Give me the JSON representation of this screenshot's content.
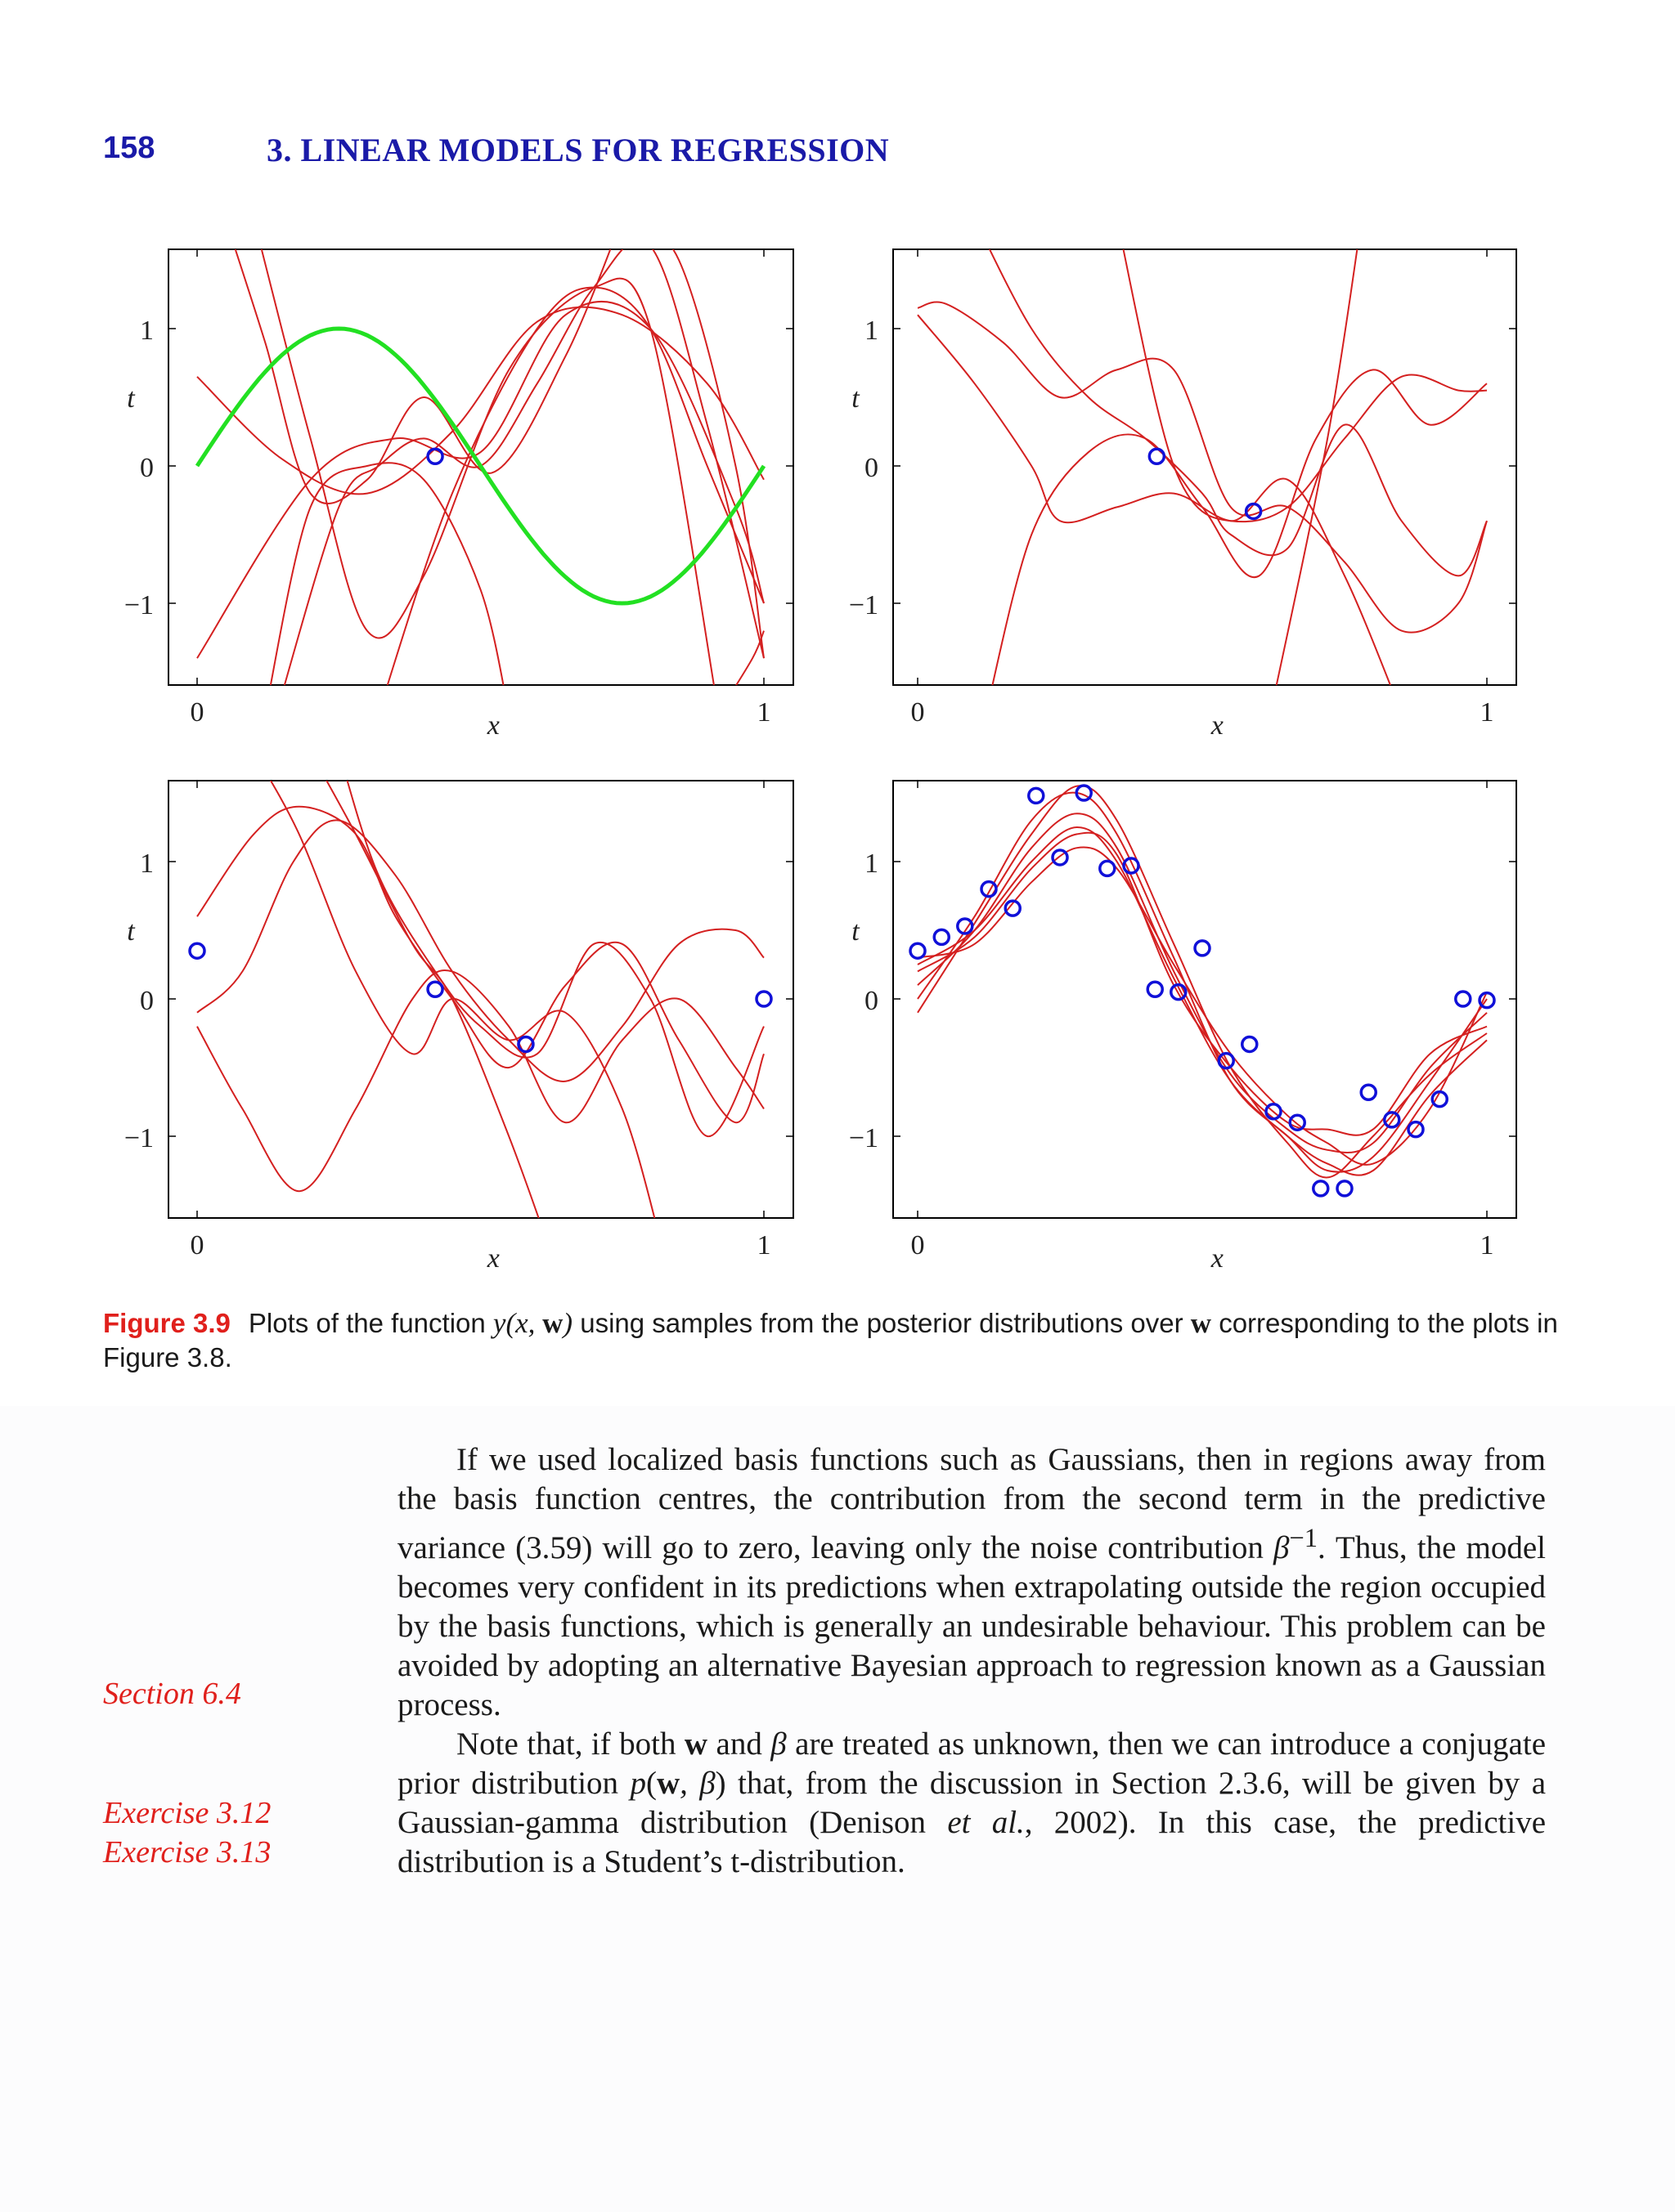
{
  "header": {
    "page_number": "158",
    "chapter_title": "3. LINEAR MODELS FOR REGRESSION"
  },
  "colors": {
    "header": "#1a1aa8",
    "sample_curves": "#d42020",
    "true_function": "#22e022",
    "data_points": "#1010d8",
    "figure_label": "#e0201c",
    "margin_notes": "#e0201c"
  },
  "chart_data": [
    {
      "type": "line",
      "panel": "top-left",
      "xlabel": "x",
      "ylabel": "t",
      "xlim": [
        0,
        1
      ],
      "ylim": [
        -1.6,
        1.6
      ],
      "xticks": [
        "0",
        "1"
      ],
      "yticks": [
        "1",
        "0",
        "−1"
      ],
      "true_function": "sin(2πx)",
      "points": [
        {
          "x": 0.42,
          "y": 0.07
        }
      ],
      "series": [
        {
          "x": [
            0,
            0.15,
            0.3,
            0.45,
            0.6,
            0.75,
            0.9,
            1.0
          ],
          "y": [
            0.65,
            0.05,
            -0.2,
            0.25,
            1.05,
            1.1,
            0.6,
            -0.1
          ]
        },
        {
          "x": [
            0,
            0.2,
            0.35,
            0.5,
            0.65,
            0.8,
            0.95,
            1.0
          ],
          "y": [
            -1.4,
            -0.1,
            0.2,
            0.1,
            1.1,
            1.0,
            -0.3,
            -1.0
          ]
        },
        {
          "x": [
            0.1,
            0.2,
            0.3,
            0.4,
            0.55,
            0.7,
            0.8,
            0.92
          ],
          "y": [
            1.8,
            0.2,
            -1.2,
            -0.8,
            0.7,
            1.3,
            1.0,
            -1.8
          ]
        },
        {
          "x": [
            0.05,
            0.12,
            0.2,
            0.3,
            0.4,
            0.52,
            0.65,
            0.75
          ],
          "y": [
            1.8,
            0.9,
            -0.2,
            -0.1,
            0.5,
            -0.05,
            0.8,
            1.8
          ]
        },
        {
          "x": [
            0.12,
            0.2,
            0.3,
            0.4,
            0.5,
            0.55
          ],
          "y": [
            -1.8,
            -0.3,
            0.0,
            -0.1,
            -0.9,
            -1.8
          ]
        },
        {
          "x": [
            0.14,
            0.25,
            0.32,
            0.4,
            0.5,
            0.6,
            0.7,
            0.8,
            0.9,
            1.0
          ],
          "y": [
            -1.8,
            -0.3,
            0.0,
            0.2,
            0.0,
            0.6,
            1.3,
            1.6,
            0.3,
            -1.4
          ]
        },
        {
          "x": [
            0.32,
            0.45,
            0.6,
            0.7,
            0.8,
            0.9,
            1.0
          ],
          "y": [
            -1.8,
            -0.2,
            1.0,
            1.3,
            1.0,
            0.0,
            -1.0
          ]
        },
        {
          "x": [
            0.75,
            0.85,
            0.95,
            1.0
          ],
          "y": [
            1.8,
            1.5,
            0.0,
            -1.4
          ]
        },
        {
          "x": [
            0.92,
            0.98,
            1.0
          ],
          "y": [
            -1.8,
            -1.4,
            -1.2
          ]
        }
      ]
    },
    {
      "type": "line",
      "panel": "top-right",
      "xlabel": "x",
      "ylabel": "t",
      "xlim": [
        0,
        1
      ],
      "ylim": [
        -1.6,
        1.6
      ],
      "xticks": [
        "0",
        "1"
      ],
      "yticks": [
        "1",
        "0",
        "−1"
      ],
      "points": [
        {
          "x": 0.42,
          "y": 0.07
        },
        {
          "x": 0.59,
          "y": -0.33
        }
      ],
      "series": [
        {
          "x": [
            0,
            0.05,
            0.15,
            0.25,
            0.35,
            0.45,
            0.55,
            0.65,
            0.75,
            0.85,
            0.95,
            1.0
          ],
          "y": [
            1.15,
            1.18,
            0.9,
            0.5,
            0.7,
            0.7,
            -0.3,
            -0.3,
            -0.7,
            -1.2,
            -1.0,
            -0.4
          ]
        },
        {
          "x": [
            0,
            0.1,
            0.2,
            0.25,
            0.35,
            0.45,
            0.55,
            0.65,
            0.75,
            0.85,
            0.95,
            1.0
          ],
          "y": [
            1.1,
            0.6,
            0.0,
            -0.4,
            -0.3,
            -0.2,
            -0.4,
            -0.3,
            0.2,
            0.65,
            0.55,
            0.55
          ]
        },
        {
          "x": [
            0.1,
            0.2,
            0.3,
            0.4,
            0.5,
            0.55,
            0.65,
            0.75,
            0.85,
            0.95,
            1.0
          ],
          "y": [
            1.8,
            1.0,
            0.5,
            0.2,
            -0.2,
            -0.5,
            -0.6,
            0.3,
            -0.4,
            -0.8,
            -0.4
          ]
        },
        {
          "x": [
            0.12,
            0.2,
            0.3,
            0.4,
            0.5,
            0.6,
            0.7,
            0.8,
            0.9,
            1.0
          ],
          "y": [
            -1.8,
            -0.5,
            0.1,
            0.2,
            -0.3,
            -0.8,
            0.2,
            0.7,
            0.3,
            0.6
          ]
        },
        {
          "x": [
            0.35,
            0.45,
            0.55,
            0.65,
            0.75,
            0.85
          ],
          "y": [
            1.8,
            0.0,
            -0.4,
            -0.1,
            -0.8,
            -1.8
          ]
        },
        {
          "x": [
            0.62,
            0.72,
            0.78
          ],
          "y": [
            -1.8,
            0.2,
            1.8
          ]
        }
      ]
    },
    {
      "type": "line",
      "panel": "bottom-left",
      "xlabel": "x",
      "ylabel": "t",
      "xlim": [
        0,
        1
      ],
      "ylim": [
        -1.6,
        1.6
      ],
      "xticks": [
        "0",
        "1"
      ],
      "yticks": [
        "1",
        "0",
        "−1"
      ],
      "points": [
        {
          "x": 0.0,
          "y": 0.35
        },
        {
          "x": 0.42,
          "y": 0.07
        },
        {
          "x": 0.58,
          "y": -0.33
        },
        {
          "x": 1.0,
          "y": 0.0
        }
      ],
      "series": [
        {
          "x": [
            0,
            0.08,
            0.17,
            0.25,
            0.35,
            0.45,
            0.55,
            0.65,
            0.75,
            0.85,
            0.95,
            1.0
          ],
          "y": [
            -0.1,
            0.2,
            1.0,
            1.3,
            0.9,
            0.2,
            -0.3,
            -0.6,
            -0.2,
            0.4,
            0.5,
            0.3
          ]
        },
        {
          "x": [
            0,
            0.1,
            0.18,
            0.28,
            0.35,
            0.45,
            0.55,
            0.65,
            0.75,
            0.85,
            0.95,
            1.0
          ],
          "y": [
            0.6,
            1.2,
            1.4,
            1.2,
            0.6,
            0.0,
            -0.5,
            0.1,
            0.4,
            -0.3,
            -0.9,
            -0.4
          ]
        },
        {
          "x": [
            0,
            0.08,
            0.18,
            0.28,
            0.38,
            0.45,
            0.55,
            0.65,
            0.75,
            0.85,
            0.95,
            1.0
          ],
          "y": [
            -0.2,
            -0.8,
            -1.4,
            -0.8,
            0.0,
            0.2,
            -0.2,
            -0.9,
            -0.3,
            0.0,
            -0.5,
            -0.8
          ]
        },
        {
          "x": [
            0.1,
            0.18,
            0.28,
            0.38,
            0.45,
            0.55,
            0.65,
            0.75,
            0.82
          ],
          "y": [
            1.8,
            1.2,
            0.2,
            -0.4,
            0.0,
            -0.3,
            -0.1,
            -0.8,
            -1.8
          ]
        },
        {
          "x": [
            0.25,
            0.32,
            0.42,
            0.5,
            0.6,
            0.7,
            0.8,
            0.9,
            1.0
          ],
          "y": [
            1.8,
            0.9,
            0.2,
            -0.2,
            -0.4,
            0.4,
            0.0,
            -1.0,
            -0.2
          ]
        },
        {
          "x": [
            0.2,
            0.28,
            0.38,
            0.45,
            0.55,
            0.62
          ],
          "y": [
            1.8,
            1.2,
            0.4,
            0.0,
            -1.0,
            -1.8
          ]
        }
      ]
    },
    {
      "type": "line",
      "panel": "bottom-right",
      "xlabel": "x",
      "ylabel": "t",
      "xlim": [
        0,
        1
      ],
      "ylim": [
        -1.6,
        1.6
      ],
      "xticks": [
        "0",
        "1"
      ],
      "yticks": [
        "1",
        "0",
        "−1"
      ],
      "points": [
        {
          "x": 0.0,
          "y": 0.35
        },
        {
          "x": 0.042,
          "y": 0.45
        },
        {
          "x": 0.083,
          "y": 0.53
        },
        {
          "x": 0.125,
          "y": 0.8
        },
        {
          "x": 0.167,
          "y": 0.66
        },
        {
          "x": 0.208,
          "y": 1.48
        },
        {
          "x": 0.25,
          "y": 1.03
        },
        {
          "x": 0.292,
          "y": 1.5
        },
        {
          "x": 0.333,
          "y": 0.95
        },
        {
          "x": 0.375,
          "y": 0.97
        },
        {
          "x": 0.417,
          "y": 0.07
        },
        {
          "x": 0.458,
          "y": 0.05
        },
        {
          "x": 0.5,
          "y": 0.37
        },
        {
          "x": 0.542,
          "y": -0.45
        },
        {
          "x": 0.583,
          "y": -0.33
        },
        {
          "x": 0.625,
          "y": -0.82
        },
        {
          "x": 0.667,
          "y": -0.9
        },
        {
          "x": 0.708,
          "y": -1.38
        },
        {
          "x": 0.75,
          "y": -1.38
        },
        {
          "x": 0.792,
          "y": -0.68
        },
        {
          "x": 0.833,
          "y": -0.88
        },
        {
          "x": 0.875,
          "y": -0.95
        },
        {
          "x": 0.917,
          "y": -0.73
        },
        {
          "x": 0.958,
          "y": 0.0
        },
        {
          "x": 1.0,
          "y": -0.01
        }
      ],
      "series": [
        {
          "x": [
            0,
            0.1,
            0.2,
            0.28,
            0.35,
            0.45,
            0.55,
            0.65,
            0.72,
            0.8,
            0.9,
            1.0
          ],
          "y": [
            0.0,
            0.6,
            1.3,
            1.5,
            1.2,
            0.3,
            -0.6,
            -1.0,
            -1.25,
            -1.15,
            -0.6,
            0.0
          ]
        },
        {
          "x": [
            0,
            0.1,
            0.2,
            0.28,
            0.35,
            0.45,
            0.55,
            0.65,
            0.72,
            0.8,
            0.9,
            1.0
          ],
          "y": [
            0.1,
            0.5,
            1.1,
            1.35,
            1.1,
            0.2,
            -0.55,
            -0.95,
            -1.1,
            -1.05,
            -0.5,
            -0.1
          ]
        },
        {
          "x": [
            0,
            0.1,
            0.2,
            0.28,
            0.35,
            0.45,
            0.55,
            0.65,
            0.72,
            0.8,
            0.9,
            1.0
          ],
          "y": [
            0.2,
            0.45,
            0.95,
            1.2,
            1.05,
            0.1,
            -0.5,
            -0.9,
            -0.95,
            -0.95,
            -0.4,
            -0.2
          ]
        },
        {
          "x": [
            0,
            0.1,
            0.2,
            0.28,
            0.35,
            0.45,
            0.55,
            0.65,
            0.72,
            0.8,
            0.9,
            1.0
          ],
          "y": [
            0.3,
            0.4,
            0.85,
            1.1,
            0.95,
            0.25,
            -0.4,
            -0.85,
            -1.05,
            -1.2,
            -0.8,
            0.05
          ]
        },
        {
          "x": [
            0,
            0.1,
            0.2,
            0.28,
            0.35,
            0.45,
            0.55,
            0.65,
            0.72,
            0.8,
            0.9,
            1.0
          ],
          "y": [
            -0.1,
            0.55,
            1.2,
            1.55,
            1.3,
            0.4,
            -0.5,
            -1.05,
            -1.3,
            -1.0,
            -0.55,
            -0.25
          ]
        },
        {
          "x": [
            0,
            0.1,
            0.2,
            0.28,
            0.35,
            0.45,
            0.55,
            0.65,
            0.72,
            0.8,
            0.9,
            1.0
          ],
          "y": [
            0.25,
            0.5,
            1.0,
            1.25,
            1.0,
            0.15,
            -0.6,
            -1.0,
            -1.2,
            -1.25,
            -0.7,
            -0.3
          ]
        }
      ]
    }
  ],
  "caption": {
    "label": "Figure 3.9",
    "text_before_math": "Plots of the function ",
    "math_func": "y(x, ",
    "math_w": "w",
    "math_close": ")",
    "text_mid": " using samples from the posterior distributions over ",
    "math_w2": "w",
    "text_after": " corresponding to the plots in Figure 3.8."
  },
  "body": {
    "p1_a": "If we used localized basis functions such as Gaussians, then in regions away from the basis function centres, the contribution from the second term in the predictive variance (3.59) will go to zero, leaving only the noise contribution ",
    "p1_beta": "β",
    "p1_sup": "−1",
    "p1_b": ". Thus, the model becomes very confident in its predictions when extrapolating outside the region occupied by the basis functions, which is generally an undesirable behaviour. This problem can be avoided by adopting an alternative Bayesian approach to regression known as a Gaussian process.",
    "p2_a": "Note that, if both ",
    "p2_w": "w",
    "p2_and": " and ",
    "p2_beta": "β",
    "p2_b": " are treated as unknown, then we can introduce a conjugate prior distribution ",
    "p2_p": "p",
    "p2_paren_open": "(",
    "p2_w2": "w",
    "p2_comma_beta": ", β",
    "p2_paren_close": ")",
    "p2_c": " that, from the discussion in Section 2.3.6, will be given by a Gaussian-gamma distribution (Denison ",
    "p2_etal": "et al.",
    "p2_d": ", 2002). In this case, the predictive distribution is a Student’s t-distribution."
  },
  "margin_notes": {
    "section": "Section 6.4",
    "exercise1": "Exercise  3.12",
    "exercise2": "Exercise  3.13"
  }
}
